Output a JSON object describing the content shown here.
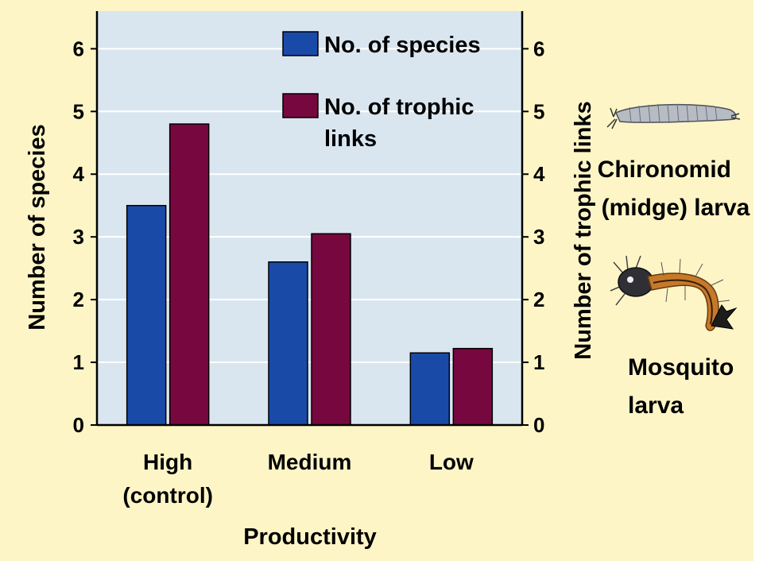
{
  "chart_data": {
    "type": "bar",
    "categories": [
      "High\n(control)",
      "Medium",
      "Low"
    ],
    "series": [
      {
        "name": "No. of species",
        "values": [
          3.5,
          2.6,
          1.15
        ],
        "color": "#1a4aa8"
      },
      {
        "name": "No. of trophic\nlinks",
        "values": [
          4.8,
          3.05,
          1.22
        ],
        "color": "#76083f"
      }
    ],
    "xlabel": "Productivity",
    "ylabel": "Number of species",
    "y2label": "Number of trophic links",
    "ylim": [
      0,
      6.6
    ],
    "yticks": [
      0,
      1,
      2,
      3,
      4,
      5,
      6
    ],
    "legend_position": "top-right",
    "grid": true,
    "plot_background": "#d9e6f0",
    "figure_background": "#fdf5c6"
  },
  "organisms": [
    {
      "label": "Chironomid\n(midge) larva",
      "icon": "chironomid-larva-icon"
    },
    {
      "label": "Mosquito\nlarva",
      "icon": "mosquito-larva-icon"
    }
  ]
}
